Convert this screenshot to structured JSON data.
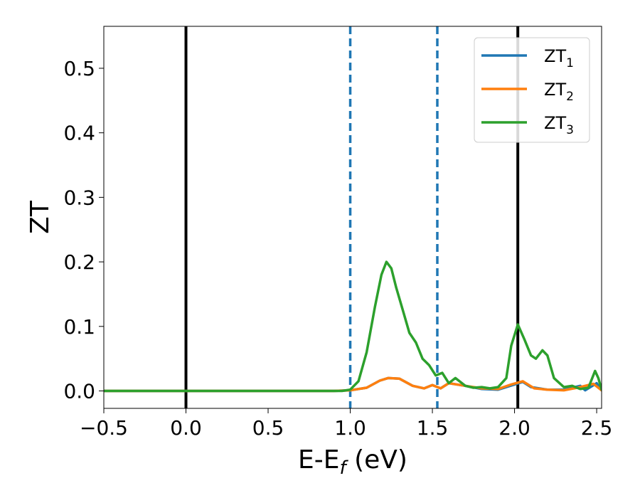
{
  "chart_data": {
    "type": "line",
    "xlabel": "E-E",
    "xlabel_sub": "f",
    "xlabel_unit": "(eV)",
    "ylabel": "ZT",
    "xlim": [
      -0.5,
      2.53
    ],
    "ylim": [
      -0.027,
      0.565
    ],
    "x_ticks": [
      -0.5,
      0.0,
      0.5,
      1.0,
      1.5,
      2.0,
      2.5
    ],
    "x_tick_labels": [
      "−0.5",
      "0.0",
      "0.5",
      "1.0",
      "1.5",
      "2.0",
      "2.5"
    ],
    "y_ticks": [
      0.0,
      0.1,
      0.2,
      0.3,
      0.4,
      0.5
    ],
    "y_tick_labels": [
      "0.0",
      "0.1",
      "0.2",
      "0.3",
      "0.4",
      "0.5"
    ],
    "grid": false,
    "legend_position": "top-right",
    "vertical_lines": [
      {
        "x": 0.0,
        "style": "solid",
        "color": "#000000"
      },
      {
        "x": 2.02,
        "style": "solid",
        "color": "#000000"
      },
      {
        "x": 1.0,
        "style": "dashed",
        "color": "#1f77b4"
      },
      {
        "x": 1.53,
        "style": "dashed",
        "color": "#1f77b4"
      }
    ],
    "series": [
      {
        "name": "ZT",
        "name_sub": "1",
        "color": "#1f77b4",
        "points": [
          [
            -0.5,
            0
          ],
          [
            0.9,
            0
          ],
          [
            1.0,
            0.001
          ],
          [
            1.1,
            0.005
          ],
          [
            1.18,
            0.016
          ],
          [
            1.23,
            0.02
          ],
          [
            1.3,
            0.019
          ],
          [
            1.38,
            0.008
          ],
          [
            1.45,
            0.004
          ],
          [
            1.5,
            0.009
          ],
          [
            1.55,
            0.004
          ],
          [
            1.6,
            0.012
          ],
          [
            1.7,
            0.008
          ],
          [
            1.8,
            0.003
          ],
          [
            1.9,
            0.002
          ],
          [
            2.0,
            0.01
          ],
          [
            2.05,
            0.014
          ],
          [
            2.1,
            0.006
          ],
          [
            2.2,
            0.002
          ],
          [
            2.3,
            0.002
          ],
          [
            2.4,
            0.008
          ],
          [
            2.43,
            0.001
          ],
          [
            2.5,
            0.012
          ],
          [
            2.53,
            0.001
          ]
        ]
      },
      {
        "name": "ZT",
        "name_sub": "2",
        "color": "#ff7f0e",
        "points": [
          [
            -0.5,
            0
          ],
          [
            0.9,
            0
          ],
          [
            1.0,
            0.001
          ],
          [
            1.1,
            0.005
          ],
          [
            1.18,
            0.016
          ],
          [
            1.23,
            0.02
          ],
          [
            1.3,
            0.019
          ],
          [
            1.38,
            0.008
          ],
          [
            1.45,
            0.004
          ],
          [
            1.5,
            0.009
          ],
          [
            1.55,
            0.004
          ],
          [
            1.6,
            0.012
          ],
          [
            1.7,
            0.008
          ],
          [
            1.8,
            0.004
          ],
          [
            1.9,
            0.003
          ],
          [
            1.98,
            0.01
          ],
          [
            2.05,
            0.015
          ],
          [
            2.12,
            0.004
          ],
          [
            2.2,
            0.002
          ],
          [
            2.3,
            0.001
          ],
          [
            2.4,
            0.006
          ],
          [
            2.48,
            0.011
          ],
          [
            2.53,
            0.001
          ]
        ]
      },
      {
        "name": "ZT",
        "name_sub": "3",
        "color": "#2ca02c",
        "points": [
          [
            -0.5,
            0
          ],
          [
            0.95,
            0
          ],
          [
            1.0,
            0.002
          ],
          [
            1.05,
            0.015
          ],
          [
            1.1,
            0.06
          ],
          [
            1.15,
            0.13
          ],
          [
            1.19,
            0.18
          ],
          [
            1.22,
            0.2
          ],
          [
            1.25,
            0.19
          ],
          [
            1.28,
            0.16
          ],
          [
            1.32,
            0.125
          ],
          [
            1.36,
            0.09
          ],
          [
            1.4,
            0.075
          ],
          [
            1.44,
            0.05
          ],
          [
            1.48,
            0.04
          ],
          [
            1.52,
            0.024
          ],
          [
            1.56,
            0.028
          ],
          [
            1.6,
            0.012
          ],
          [
            1.64,
            0.02
          ],
          [
            1.7,
            0.008
          ],
          [
            1.75,
            0.005
          ],
          [
            1.8,
            0.006
          ],
          [
            1.85,
            0.004
          ],
          [
            1.9,
            0.006
          ],
          [
            1.95,
            0.02
          ],
          [
            1.98,
            0.07
          ],
          [
            2.02,
            0.103
          ],
          [
            2.06,
            0.08
          ],
          [
            2.1,
            0.055
          ],
          [
            2.13,
            0.05
          ],
          [
            2.17,
            0.063
          ],
          [
            2.2,
            0.055
          ],
          [
            2.24,
            0.02
          ],
          [
            2.3,
            0.006
          ],
          [
            2.35,
            0.008
          ],
          [
            2.4,
            0.003
          ],
          [
            2.45,
            0.005
          ],
          [
            2.49,
            0.031
          ],
          [
            2.51,
            0.02
          ],
          [
            2.53,
            0.002
          ]
        ]
      }
    ]
  }
}
